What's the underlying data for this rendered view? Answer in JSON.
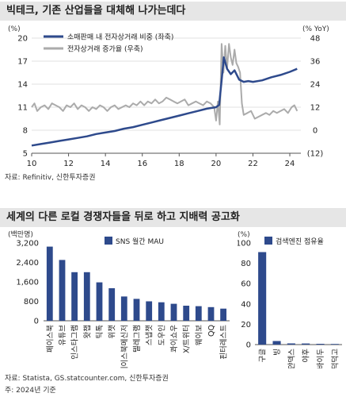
{
  "panel1": {
    "title": "빅테크, 기존 산업들을 대체해 나가는데다",
    "source": "자료: Refinitiv, 신한투자증권",
    "left_unit": "(%)",
    "right_unit": "(% YoY)"
  },
  "panel2": {
    "title": "세계의 다른 로컬 경쟁자들을 뒤로 하고 지배력 공고화",
    "source": "자료: Statista, GS.statcounter.com, 신한투자증권",
    "note": "주: 2024년 기준"
  },
  "colors": {
    "navy": "#2e4a8c",
    "gray": "#ababab",
    "title_bg": "#e6e6e6"
  },
  "chart_data": [
    {
      "type": "line",
      "x_ticks": [
        "10",
        "12",
        "14",
        "16",
        "18",
        "20",
        "22",
        "24"
      ],
      "x_range": [
        2010,
        2024.6
      ],
      "left_ticks": [
        "5",
        "8",
        "11",
        "14",
        "17",
        "20"
      ],
      "left_range": [
        5,
        20
      ],
      "right_ticks": [
        "(12)",
        "0",
        "12",
        "24",
        "36",
        "48"
      ],
      "right_range": [
        -12,
        48
      ],
      "series": [
        {
          "name": "소매판매 내 전자상거래 비중 (좌축)",
          "axis": "left",
          "color": "#2e4a8c",
          "x": [
            2010.0,
            2010.5,
            2011.0,
            2011.5,
            2012.0,
            2012.5,
            2013.0,
            2013.5,
            2014.0,
            2014.5,
            2015.0,
            2015.5,
            2016.0,
            2016.5,
            2017.0,
            2017.5,
            2018.0,
            2018.5,
            2019.0,
            2019.5,
            2020.0,
            2020.17,
            2020.3,
            2020.42,
            2020.6,
            2020.8,
            2021.0,
            2021.25,
            2021.5,
            2021.75,
            2022.0,
            2022.5,
            2023.0,
            2023.5,
            2024.0,
            2024.4
          ],
          "y": [
            6.0,
            6.2,
            6.4,
            6.6,
            6.8,
            7.0,
            7.2,
            7.5,
            7.7,
            7.9,
            8.2,
            8.4,
            8.7,
            9.0,
            9.3,
            9.6,
            9.9,
            10.2,
            10.5,
            10.8,
            11.0,
            11.3,
            14.5,
            17.5,
            16.0,
            15.3,
            15.8,
            14.6,
            14.3,
            14.4,
            14.3,
            14.5,
            14.9,
            15.2,
            15.6,
            16.0
          ]
        },
        {
          "name": "전자상거래 증가율 (우축)",
          "axis": "right",
          "color": "#ababab",
          "x": [
            2010.0,
            2010.15,
            2010.3,
            2010.5,
            2010.7,
            2010.9,
            2011.1,
            2011.3,
            2011.5,
            2011.7,
            2011.9,
            2012.1,
            2012.3,
            2012.5,
            2012.7,
            2012.9,
            2013.1,
            2013.3,
            2013.5,
            2013.7,
            2013.9,
            2014.1,
            2014.3,
            2014.5,
            2014.7,
            2014.9,
            2015.1,
            2015.3,
            2015.5,
            2015.7,
            2015.9,
            2016.1,
            2016.3,
            2016.5,
            2016.7,
            2016.9,
            2017.1,
            2017.3,
            2017.5,
            2017.7,
            2017.9,
            2018.1,
            2018.3,
            2018.5,
            2018.7,
            2018.9,
            2019.1,
            2019.3,
            2019.5,
            2019.7,
            2019.9,
            2020.0,
            2020.1,
            2020.2,
            2020.3,
            2020.4,
            2020.5,
            2020.6,
            2020.7,
            2020.8,
            2020.9,
            2021.0,
            2021.1,
            2021.2,
            2021.3,
            2021.4,
            2021.5,
            2021.7,
            2021.9,
            2022.1,
            2022.3,
            2022.5,
            2022.7,
            2022.9,
            2023.1,
            2023.3,
            2023.5,
            2023.7,
            2023.9,
            2024.1,
            2024.25,
            2024.4
          ],
          "y": [
            12,
            14,
            10,
            12,
            13,
            11,
            14,
            13,
            12,
            10,
            13,
            12,
            14,
            11,
            13,
            12,
            10,
            12,
            11,
            13,
            12,
            10,
            12,
            13,
            11,
            12,
            13,
            12,
            14,
            13,
            15,
            13,
            15,
            14,
            16,
            14,
            15,
            17,
            16,
            15,
            14,
            15,
            16,
            13,
            14,
            15,
            14,
            13,
            15,
            14,
            12,
            5,
            15,
            3,
            45,
            30,
            44,
            32,
            45,
            38,
            34,
            42,
            35,
            33,
            30,
            14,
            8,
            9,
            10,
            6,
            7,
            8,
            9,
            8,
            10,
            9,
            10,
            11,
            9,
            12,
            13,
            10
          ]
        }
      ]
    },
    {
      "type": "bar",
      "ylabel": "(백만명)",
      "legend": "SNS 월간 MAU",
      "color": "#2e4a8c",
      "y_ticks": [
        "0",
        "800",
        "1,600",
        "2,400",
        "3,200"
      ],
      "ylim": [
        0,
        3200
      ],
      "categories": [
        "페이스북",
        "유튜브",
        "인스타그램",
        "왓챕",
        "틱톡",
        "위챗",
        "페이스북메신저",
        "텔레그램",
        "스냅챗",
        "도우인",
        "콰이쇼우",
        "X/트위터",
        "웨이보",
        "QQ",
        "핀터레스트"
      ],
      "values": [
        3050,
        2500,
        2000,
        2000,
        1580,
        1340,
        1000,
        900,
        800,
        760,
        700,
        620,
        600,
        560,
        500
      ]
    },
    {
      "type": "bar",
      "ylabel": "(%)",
      "legend": "검색엔진 점유율",
      "color": "#2e4a8c",
      "y_ticks": [
        "0",
        "20",
        "40",
        "60",
        "80",
        "100"
      ],
      "ylim": [
        0,
        100
      ],
      "categories": [
        "구글",
        "빙",
        "얀덱스",
        "야후",
        "바이두",
        "덕덕고"
      ],
      "values": [
        91,
        3.5,
        1.2,
        1.1,
        0.8,
        0.6
      ]
    }
  ]
}
